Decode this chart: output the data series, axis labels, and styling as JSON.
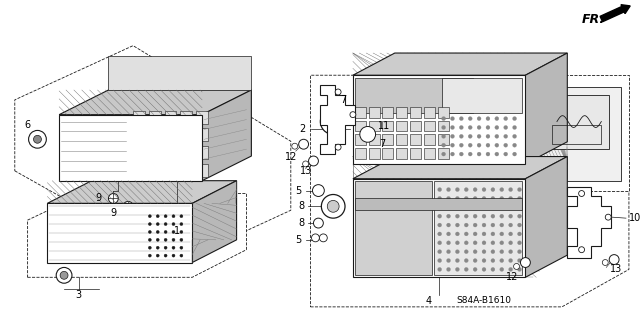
{
  "bg_color": "#ffffff",
  "fig_width": 6.4,
  "fig_height": 3.19,
  "dpi": 100,
  "fr_label": "FR.",
  "part_code": "S84A-B1610",
  "lc": "#1a1a1a",
  "lw": 0.8,
  "thin_lw": 0.5,
  "hatch_lw": 0.3
}
